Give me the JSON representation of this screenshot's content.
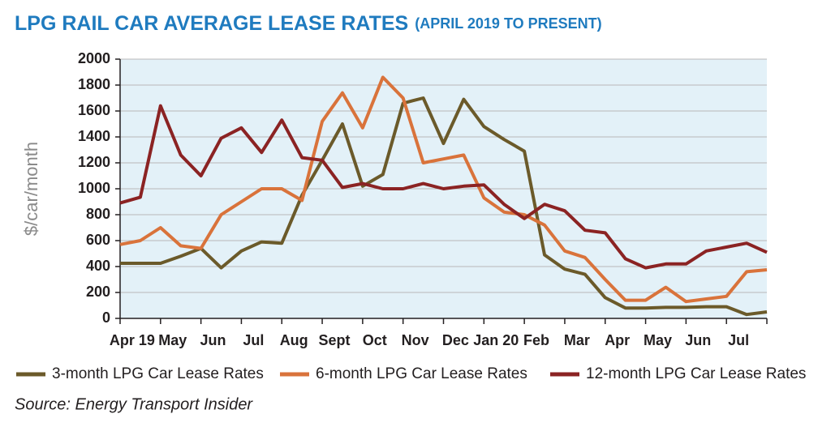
{
  "chart_data": {
    "type": "line",
    "title": "LPG RAIL CAR AVERAGE LEASE RATES",
    "subtitle": "(APRIL 2019 TO PRESENT)",
    "y_label": "$/car/month",
    "source": "Source: Energy Transport Insider",
    "categories": [
      "Apr 19",
      null,
      "May",
      null,
      "Jun",
      null,
      "Jul",
      null,
      "Aug",
      null,
      "Sept",
      null,
      "Oct",
      null,
      "Nov",
      null,
      "Dec",
      null,
      "Jan 20",
      null,
      "Feb",
      null,
      "Mar",
      null,
      "Apr",
      null,
      "May",
      null,
      "Jun",
      null,
      "Jul",
      null,
      null
    ],
    "series": [
      {
        "name": "3-month LPG Car Lease Rates",
        "color": "#6b5a2a",
        "values": [
          425,
          425,
          425,
          480,
          540,
          390,
          520,
          590,
          580,
          950,
          1220,
          1500,
          1020,
          1110,
          1660,
          1700,
          1350,
          1690,
          1480,
          1380,
          1290,
          490,
          380,
          340,
          160,
          80,
          80,
          85,
          85,
          90,
          90,
          30,
          50
        ]
      },
      {
        "name": "6-month LPG Car Lease Rates",
        "color": "#d9733b",
        "values": [
          570,
          600,
          700,
          560,
          540,
          800,
          900,
          1000,
          1000,
          910,
          1520,
          1740,
          1470,
          1860,
          1700,
          1200,
          1230,
          1260,
          930,
          820,
          800,
          720,
          520,
          470,
          300,
          140,
          140,
          240,
          130,
          150,
          170,
          360,
          375
        ]
      },
      {
        "name": "12-month LPG Car Lease Rates",
        "color": "#8b2323",
        "values": [
          890,
          935,
          1640,
          1260,
          1100,
          1390,
          1470,
          1280,
          1530,
          1240,
          1220,
          1010,
          1040,
          1000,
          1000,
          1040,
          1000,
          1020,
          1030,
          880,
          770,
          880,
          830,
          680,
          660,
          460,
          390,
          420,
          420,
          520,
          550,
          580,
          510
        ]
      }
    ],
    "ylim": [
      0,
      2000
    ],
    "yticks": [
      0,
      200,
      400,
      600,
      800,
      1000,
      1200,
      1400,
      1600,
      1800,
      2000
    ],
    "grid": true
  }
}
